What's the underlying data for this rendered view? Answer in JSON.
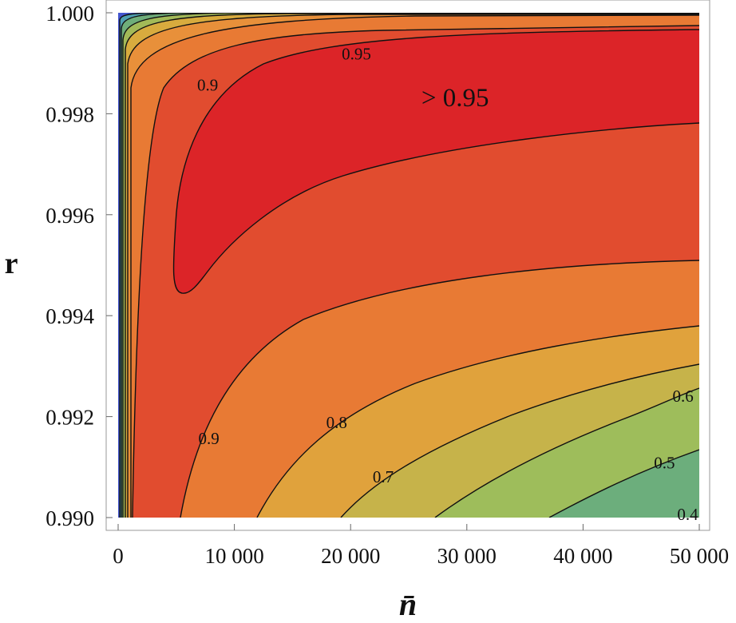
{
  "chart_data": {
    "type": "contour",
    "x": {
      "label": "n̄",
      "range": [
        0,
        50000
      ],
      "ticks": [
        0,
        10000,
        20000,
        30000,
        40000,
        50000
      ],
      "tick_labels": [
        "0",
        "10 000",
        "20 000",
        "30 000",
        "40 000",
        "50 000"
      ]
    },
    "y": {
      "label": "r",
      "range": [
        0.99,
        1.0
      ],
      "ticks": [
        0.99,
        0.992,
        0.994,
        0.996,
        0.998,
        1.0
      ],
      "tick_labels": [
        "0.990",
        "0.992",
        "0.994",
        "0.996",
        "0.998",
        "1.000"
      ]
    },
    "levels": [
      0.4,
      0.5,
      0.6,
      0.7,
      0.8,
      0.9,
      0.95
    ],
    "level_labels": [
      {
        "text": "0.95",
        "x": 20500,
        "y": 0.99915
      },
      {
        "text": "0.9",
        "x": 7700,
        "y": 0.99853
      },
      {
        "text": "0.9",
        "x": 7800,
        "y": 0.99153
      },
      {
        "text": "0.8",
        "x": 18800,
        "y": 0.99185
      },
      {
        "text": "0.7",
        "x": 22800,
        "y": 0.99077
      },
      {
        "text": "0.6",
        "x": 48600,
        "y": 0.99237
      },
      {
        "text": "0.5",
        "x": 47000,
        "y": 0.99105
      },
      {
        "text": "0.4",
        "x": 49000,
        "y": 0.99003
      }
    ],
    "region_label": {
      "text": "> 0.95",
      "x": 29000,
      "y": 0.99827
    },
    "colors": {
      "above_0.95": "#dc2428",
      "0.9_to_0.95": "#e14c2f",
      "0.8_to_0.9": "#e87a34",
      "0.7_to_0.8": "#e0a23c",
      "0.6_to_0.7": "#c6b34a",
      "0.5_to_0.6": "#9ebd5b",
      "0.4_to_0.5": "#6cae7c",
      "low": "#4356cf"
    },
    "grid": false
  }
}
